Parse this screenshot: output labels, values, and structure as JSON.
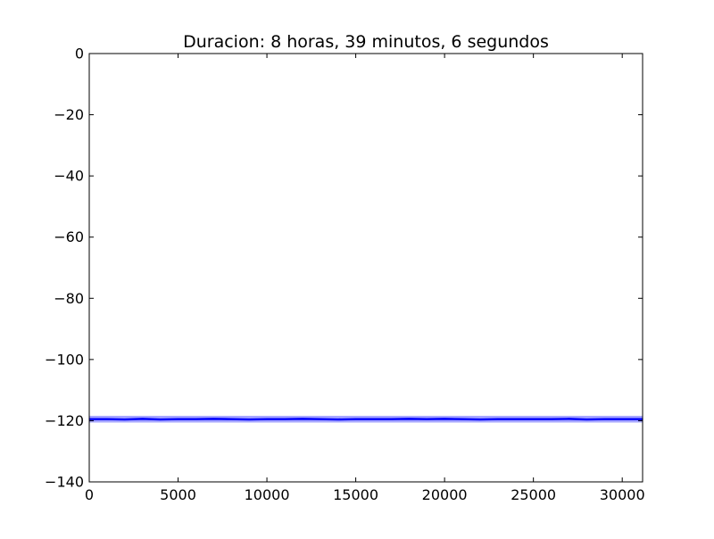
{
  "chart_data": {
    "type": "line",
    "title": "Duracion: 8 horas, 39 minutos, 6 segundos",
    "xlabel": "",
    "ylabel": "",
    "xlim": [
      0,
      31146
    ],
    "ylim": [
      -140,
      0
    ],
    "xticks": [
      0,
      5000,
      10000,
      15000,
      20000,
      25000,
      30000
    ],
    "yticks": [
      0,
      -20,
      -40,
      -60,
      -80,
      -100,
      -120,
      -140
    ],
    "xtick_labels": [
      "0",
      "5000",
      "10000",
      "15000",
      "20000",
      "25000",
      "30000"
    ],
    "ytick_labels": [
      "0",
      "−20",
      "−40",
      "−60",
      "−80",
      "−100",
      "−120",
      "−140"
    ],
    "grid": false,
    "legend": "none",
    "series": [
      {
        "color": "#0000ff",
        "x": [
          0,
          1000,
          2000,
          3000,
          4000,
          5000,
          6000,
          7000,
          8000,
          9000,
          10000,
          11000,
          12000,
          13000,
          14000,
          15000,
          16000,
          17000,
          18000,
          19000,
          20000,
          21000,
          22000,
          23000,
          24000,
          25000,
          26000,
          27000,
          28000,
          29000,
          30000,
          31146
        ],
        "values": [
          -119.5,
          -119.5,
          -119.6,
          -119.4,
          -119.6,
          -119.5,
          -119.5,
          -119.4,
          -119.5,
          -119.6,
          -119.5,
          -119.5,
          -119.4,
          -119.5,
          -119.6,
          -119.5,
          -119.5,
          -119.5,
          -119.4,
          -119.5,
          -119.4,
          -119.5,
          -119.6,
          -119.5,
          -119.5,
          -119.5,
          -119.5,
          -119.4,
          -119.6,
          -119.5,
          -119.5,
          -119.5
        ],
        "min": -120.6,
        "max": -118.4
      }
    ]
  }
}
